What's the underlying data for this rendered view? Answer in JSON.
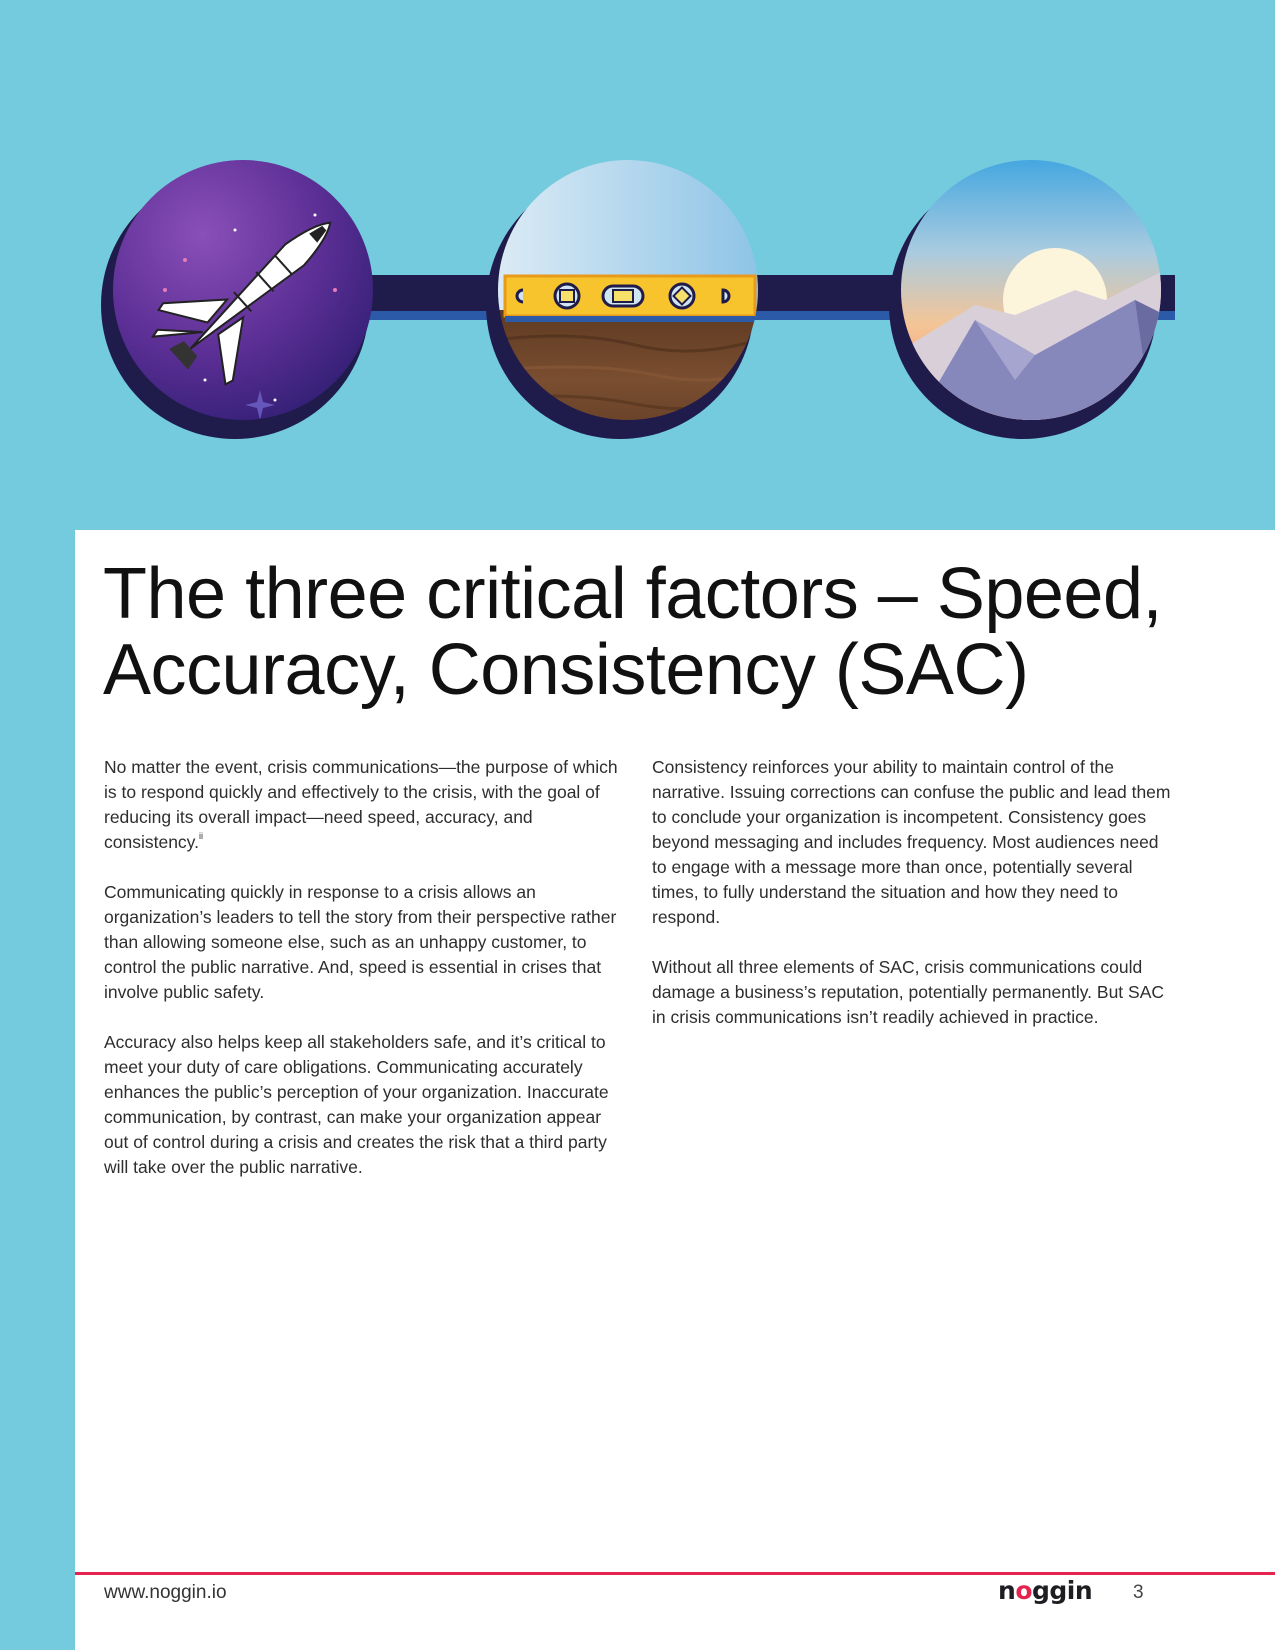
{
  "page": {
    "title": "The three critical factors – Speed, Accuracy, Consistency (SAC)",
    "left_column": [
      "No matter the event, crisis communications—the purpose of which is to respond quickly and effectively to the crisis, with the goal of reducing its overall impact—need speed, accuracy, and consistency.",
      "Communicating quickly in response to a crisis allows an organization’s leaders to tell the story from their perspective rather than allowing someone else, such as an unhappy customer, to control the public narrative. And, speed is essential in crises that involve public safety.",
      "Accuracy also helps keep all stakeholders safe, and it’s critical to meet your duty of care obligations. Communicating accurately enhances the public’s perception of your organization. Inaccurate communication, by contrast, can make your organization appear out of control during a crisis and creates the risk that a third party will take over the public narrative."
    ],
    "footnote_marker": "ii",
    "right_column": [
      "Consistency reinforces your ability to maintain control of the narrative. Issuing corrections can confuse the public and lead them to conclude your organization is incompetent. Consistency goes beyond messaging and includes frequency. Most audiences need to engage with a message more than once, potentially several times, to fully understand the situation and how they need to respond.",
      "Without all three elements of SAC, crisis communications could damage a business’s reputation, potentially permanently. But SAC in crisis communications isn’t readily achieved in practice."
    ]
  },
  "footer": {
    "url": "www.noggin.io",
    "logo": {
      "prefix": "n",
      "mark": "o",
      "suffix": "ggin"
    },
    "page_number": "3"
  },
  "hero": {
    "icons": [
      "space-shuttle-icon",
      "spirit-level-icon",
      "sunrise-mountains-icon"
    ]
  },
  "colors": {
    "background_band": "#74cbdd",
    "circle_ring": "#1f1b4b",
    "connector": "#1f1b4b",
    "accent": "#e4234f"
  }
}
